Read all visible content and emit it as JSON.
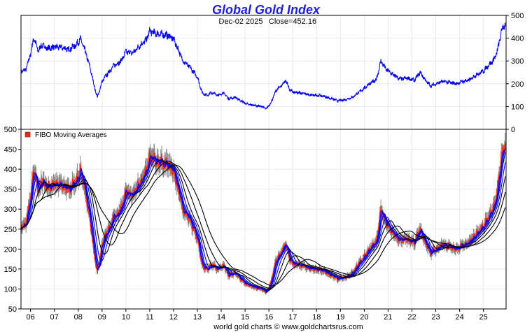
{
  "chart_data": [
    {
      "type": "line",
      "title": "Global Gold Index",
      "subtitle_date": "Dec-02  2025",
      "subtitle_close": "Close=452.16",
      "yaxis_side": "right",
      "ylim": [
        0,
        500
      ],
      "yticks": [
        0,
        100,
        200,
        300,
        400,
        500
      ],
      "grid": true,
      "series": [
        {
          "color": "#0000ee",
          "x": [
            2005.6,
            2005.8,
            2006.0,
            2006.15,
            2006.3,
            2006.5,
            2006.7,
            2007.0,
            2007.3,
            2007.6,
            2007.9,
            2008.1,
            2008.3,
            2008.5,
            2008.65,
            2008.8,
            2008.88,
            2009.0,
            2009.2,
            2009.5,
            2009.8,
            2010.0,
            2010.3,
            2010.6,
            2010.85,
            2011.0,
            2011.3,
            2011.6,
            2011.8,
            2012.0,
            2012.2,
            2012.4,
            2012.7,
            2013.0,
            2013.2,
            2013.4,
            2013.6,
            2013.9,
            2014.1,
            2014.3,
            2014.6,
            2014.9,
            2015.1,
            2015.4,
            2015.7,
            2015.9,
            2016.1,
            2016.3,
            2016.55,
            2016.7,
            2016.9,
            2017.1,
            2017.4,
            2017.7,
            2018.0,
            2018.3,
            2018.6,
            2018.9,
            2019.2,
            2019.5,
            2019.8,
            2020.0,
            2020.15,
            2020.3,
            2020.5,
            2020.7,
            2020.9,
            2021.2,
            2021.5,
            2021.8,
            2022.1,
            2022.35,
            2022.6,
            2022.8,
            2023.0,
            2023.3,
            2023.6,
            2023.9,
            2024.1,
            2024.4,
            2024.7,
            2025.0,
            2025.2,
            2025.4,
            2025.55,
            2025.7,
            2025.82,
            2025.92
          ],
          "values": [
            255,
            260,
            330,
            405,
            345,
            370,
            355,
            360,
            360,
            350,
            370,
            395,
            340,
            270,
            200,
            140,
            165,
            210,
            240,
            280,
            300,
            340,
            335,
            370,
            390,
            430,
            420,
            415,
            410,
            395,
            350,
            300,
            270,
            230,
            160,
            150,
            160,
            150,
            160,
            135,
            140,
            120,
            110,
            105,
            100,
            90,
            120,
            170,
            195,
            215,
            170,
            160,
            160,
            150,
            150,
            145,
            135,
            125,
            130,
            140,
            165,
            180,
            195,
            205,
            215,
            300,
            265,
            240,
            220,
            225,
            215,
            250,
            210,
            190,
            200,
            210,
            205,
            200,
            210,
            215,
            240,
            255,
            280,
            300,
            330,
            400,
            455,
            452
          ]
        }
      ]
    },
    {
      "type": "line",
      "legend": [
        "FIBO  Moving  Averages"
      ],
      "legend_position": "top-left",
      "ylim": [
        50,
        500
      ],
      "yticks": [
        50,
        100,
        150,
        200,
        250,
        300,
        350,
        400,
        450,
        500
      ],
      "yaxis_side": "left",
      "xticks": [
        "06",
        "07",
        "08",
        "09",
        "10",
        "11",
        "12",
        "13",
        "14",
        "15",
        "16",
        "17",
        "18",
        "19",
        "20",
        "21",
        "22",
        "23",
        "24",
        "25"
      ],
      "x_tick_years": [
        2006,
        2007,
        2008,
        2009,
        2010,
        2011,
        2012,
        2013,
        2014,
        2015,
        2016,
        2017,
        2018,
        2019,
        2020,
        2021,
        2022,
        2023,
        2024,
        2025
      ],
      "xlim": [
        2005.6,
        2025.95
      ],
      "grid": true,
      "price_series": {
        "color": "#ff3010",
        "bar_color": "#8a8a8a"
      },
      "moving_averages": [
        {
          "period_months": 1,
          "color": "#0000ee"
        },
        {
          "period_months": 2,
          "color": "#0000ee"
        },
        {
          "period_months": 3,
          "color": "#0000ee"
        },
        {
          "period_months": 5,
          "color": "#0000ee"
        },
        {
          "period_months": 8,
          "color": "#000000"
        },
        {
          "period_months": 13,
          "color": "#000000"
        },
        {
          "period_months": 21,
          "color": "#000000"
        }
      ]
    }
  ],
  "footer": "world gold charts © www.goldchartsrus.com"
}
